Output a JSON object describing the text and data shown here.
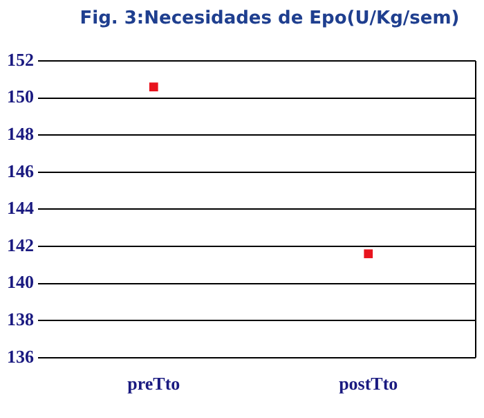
{
  "chart_data": {
    "type": "scatter",
    "title": "Fig. 3:Necesidades de Epo(U/Kg/sem)",
    "categories": [
      "preTto",
      "postTto"
    ],
    "series": [
      {
        "color": "#e8141e",
        "values": [
          150.6,
          141.6
        ]
      }
    ],
    "ylim": [
      136,
      152
    ],
    "yticks": [
      136,
      138,
      140,
      142,
      144,
      146,
      148,
      150,
      152
    ],
    "grid": "y",
    "legend": false,
    "marker": "square"
  }
}
